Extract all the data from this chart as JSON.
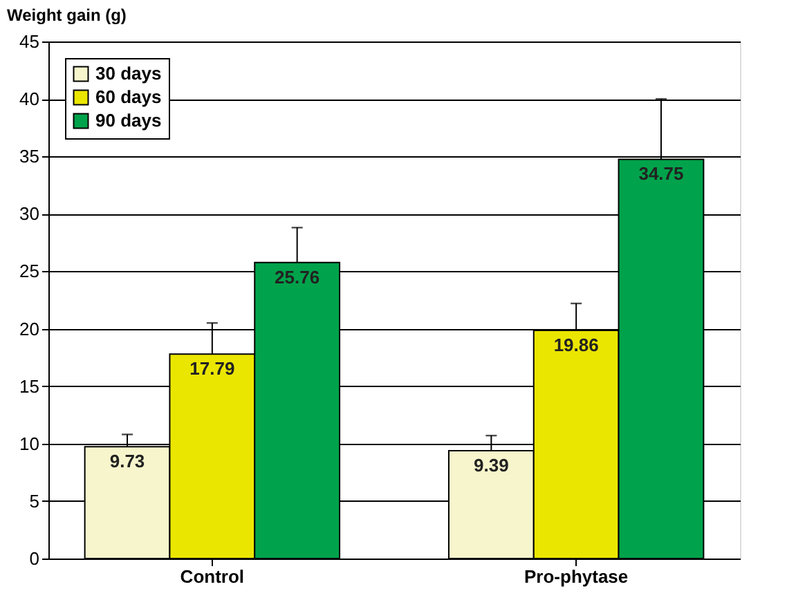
{
  "chart_data": {
    "type": "bar",
    "ylabel": "Weight gain (g)",
    "categories": [
      "Control",
      "Pro-phytase"
    ],
    "series": [
      {
        "name": "30 days",
        "color": "#f7f5cc",
        "values": [
          9.73,
          9.39
        ],
        "errors": [
          [
            9.73,
            10.8
          ],
          [
            9.39,
            10.7
          ]
        ]
      },
      {
        "name": "60 days",
        "color": "#ebe600",
        "values": [
          17.79,
          19.86
        ],
        "errors": [
          [
            17.79,
            20.5
          ],
          [
            19.86,
            22.2
          ]
        ]
      },
      {
        "name": "90 days",
        "color": "#00a34b",
        "values": [
          25.76,
          34.75
        ],
        "errors": [
          [
            25.76,
            28.8
          ],
          [
            34.75,
            40
          ]
        ]
      }
    ],
    "ylim": [
      0,
      45
    ],
    "yticks": [
      0,
      5,
      10,
      15,
      20,
      25,
      30,
      35,
      40,
      45
    ],
    "grid": "y",
    "legend": "top left",
    "data_labels": true
  }
}
